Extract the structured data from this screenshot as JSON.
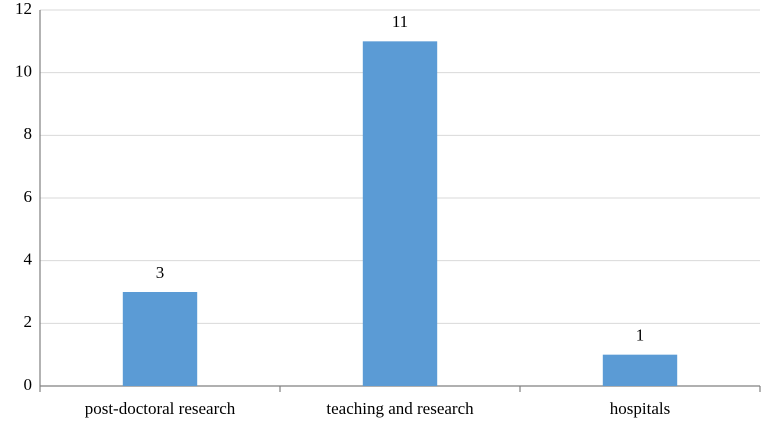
{
  "chart_data": {
    "type": "bar",
    "categories": [
      "post-doctoral research",
      "teaching and research",
      "hospitals"
    ],
    "values": [
      3,
      11,
      1
    ],
    "color": "#5b9bd5",
    "ylim": [
      0,
      12
    ],
    "yticks": [
      0,
      2,
      4,
      6,
      8,
      10,
      12
    ],
    "grid": true
  }
}
